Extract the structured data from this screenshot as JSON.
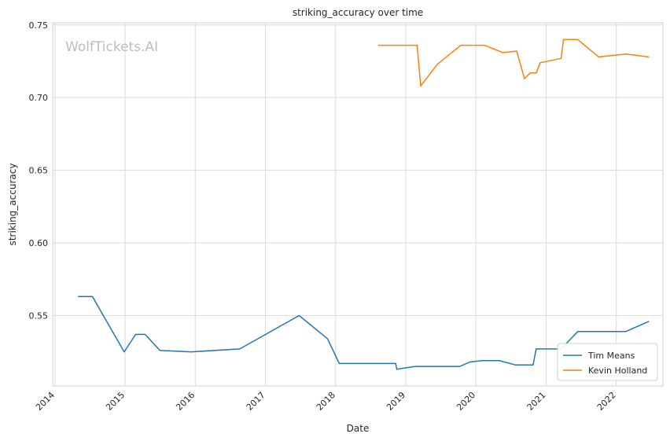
{
  "chart_data": {
    "type": "line",
    "title": "striking_accuracy over time",
    "xlabel": "Date",
    "ylabel": "striking_accuracy",
    "watermark": "WolfTickets.AI",
    "xlim": [
      "2013-12-20",
      "2022-09-01"
    ],
    "ylim": [
      0.5015,
      0.7515
    ],
    "x_ticks": [
      "2014-01-01",
      "2015-01-01",
      "2016-01-01",
      "2017-01-01",
      "2018-01-01",
      "2019-01-01",
      "2020-01-01",
      "2021-01-01",
      "2022-01-01"
    ],
    "x_tick_labels": [
      "2014",
      "2015",
      "2016",
      "2017",
      "2018",
      "2019",
      "2020",
      "2021",
      "2022"
    ],
    "y_ticks": [
      0.55,
      0.6,
      0.65,
      0.7,
      0.75
    ],
    "y_tick_labels": [
      "0.55",
      "0.60",
      "0.65",
      "0.70",
      "0.75"
    ],
    "grid": true,
    "legend_position": "lower-right",
    "series": [
      {
        "name": "Tim Means",
        "color": "#1f77b4",
        "x": [
          "2014-05-01",
          "2014-07-15",
          "2014-12-27",
          "2015-02-25",
          "2015-04-15",
          "2015-07-01",
          "2015-12-10",
          "2016-08-20",
          "2017-06-25",
          "2017-11-20",
          "2018-01-20",
          "2018-11-10",
          "2018-11-15",
          "2019-02-20",
          "2019-10-10",
          "2019-12-01",
          "2020-02-01",
          "2020-05-01",
          "2020-07-25",
          "2020-10-25",
          "2020-11-10",
          "2021-03-20",
          "2021-06-15",
          "2022-02-20",
          "2022-06-20"
        ],
        "y": [
          0.563,
          0.563,
          0.525,
          0.537,
          0.537,
          0.526,
          0.525,
          0.527,
          0.55,
          0.534,
          0.517,
          0.517,
          0.513,
          0.515,
          0.515,
          0.518,
          0.519,
          0.519,
          0.516,
          0.516,
          0.527,
          0.527,
          0.539,
          0.539,
          0.546
        ]
      },
      {
        "name": "Kevin Holland",
        "color": "#ff7f0e",
        "x": [
          "2018-08-10",
          "2019-03-01",
          "2019-03-20",
          "2019-06-15",
          "2019-10-15",
          "2020-02-15",
          "2020-05-20",
          "2020-08-01",
          "2020-09-10",
          "2020-10-10",
          "2020-11-10",
          "2020-12-01",
          "2021-03-20",
          "2021-04-01",
          "2021-06-15",
          "2021-10-01",
          "2022-02-20",
          "2022-06-20"
        ],
        "y": [
          0.736,
          0.736,
          0.708,
          0.723,
          0.736,
          0.736,
          0.731,
          0.732,
          0.713,
          0.717,
          0.717,
          0.724,
          0.727,
          0.74,
          0.74,
          0.728,
          0.73,
          0.728
        ]
      }
    ]
  }
}
